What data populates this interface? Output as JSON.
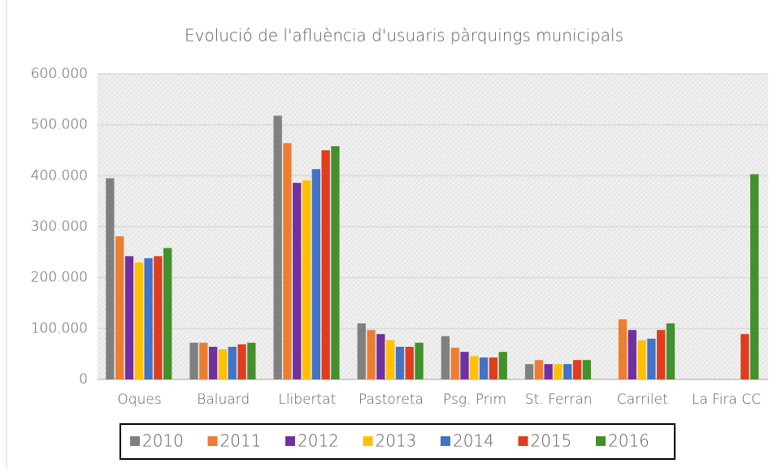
{
  "chart_data": {
    "type": "bar",
    "title": "Evolució de l'afluència d'usuaris pàrquings municipals",
    "categories": [
      "Oques",
      "Baluard",
      "Llibertat",
      "Pastoreta",
      "Psg. Prim",
      "St. Ferran",
      "Carrilet",
      "La Fira CC"
    ],
    "series": [
      {
        "name": "2010",
        "color": "#808080",
        "values": [
          395000,
          72000,
          518000,
          110000,
          85000,
          30000,
          null,
          null
        ]
      },
      {
        "name": "2011",
        "color": "#ed7d31",
        "values": [
          281000,
          72000,
          464000,
          97000,
          62000,
          38000,
          118000,
          null
        ]
      },
      {
        "name": "2012",
        "color": "#7030a0",
        "values": [
          242000,
          64000,
          386000,
          89000,
          54000,
          30000,
          97000,
          null
        ]
      },
      {
        "name": "2013",
        "color": "#ffc000",
        "values": [
          230000,
          59000,
          391000,
          77000,
          46000,
          30000,
          77000,
          null
        ]
      },
      {
        "name": "2014",
        "color": "#4472c4",
        "values": [
          238000,
          64000,
          413000,
          64000,
          43000,
          30000,
          80000,
          null
        ]
      },
      {
        "name": "2015",
        "color": "#e03c1e",
        "values": [
          242000,
          69000,
          450000,
          64000,
          43000,
          38000,
          97000,
          89000
        ]
      },
      {
        "name": "2016",
        "color": "#43902c",
        "values": [
          258000,
          72000,
          458000,
          72000,
          54000,
          38000,
          110000,
          403000
        ]
      }
    ],
    "ylim": [
      0,
      600000
    ],
    "yticks": [
      0,
      {
        "value": 100000,
        "label": "100.000"
      },
      {
        "value": 200000,
        "label": "200.000"
      },
      {
        "value": 300000,
        "label": "300.000"
      },
      {
        "value": 400000,
        "label": "400.000"
      },
      {
        "value": 500000,
        "label": "500.000"
      },
      {
        "value": 600000,
        "label": "600.000"
      }
    ],
    "grid": true,
    "legend": "bottom"
  }
}
